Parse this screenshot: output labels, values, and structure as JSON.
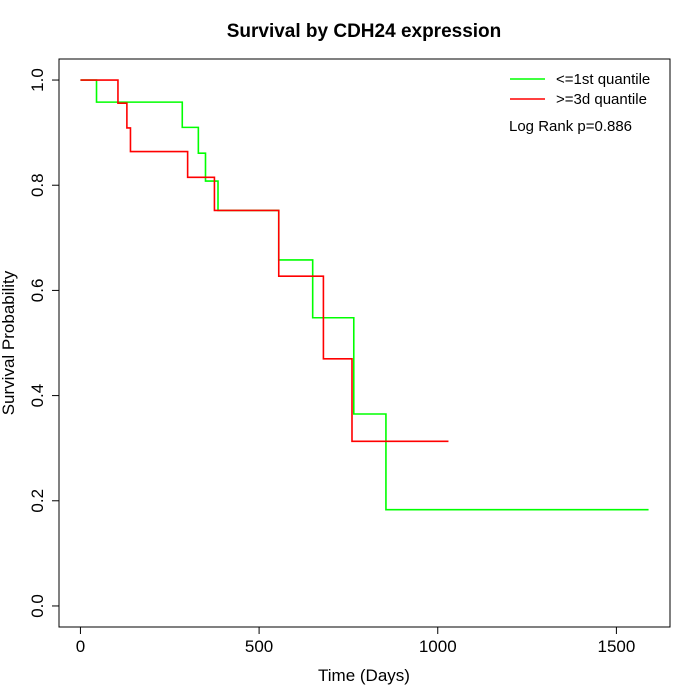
{
  "chart_data": {
    "type": "line",
    "title": "Survival by CDH24 expression",
    "xlabel": "Time (Days)",
    "ylabel": "Survival Probability",
    "xlim": [
      -60,
      1650
    ],
    "ylim": [
      -0.04,
      1.04
    ],
    "xticks": [
      0,
      500,
      1000,
      1500
    ],
    "yticks": [
      0.0,
      0.2,
      0.4,
      0.6,
      0.8,
      1.0
    ],
    "xtick_labels": [
      "0",
      "500",
      "1000",
      "1500"
    ],
    "ytick_labels": [
      "0.0",
      "0.2",
      "0.4",
      "0.6",
      "0.8",
      "1.0"
    ],
    "grid": false,
    "legend_position": "top-right",
    "annotation": "Log Rank p=0.886",
    "series": [
      {
        "name": "<=1st quantile",
        "color": "#00ff00",
        "step_times": [
          0,
          45,
          285,
          330,
          350,
          385,
          555,
          650,
          765,
          855,
          1590
        ],
        "survival": [
          1.0,
          0.958,
          0.91,
          0.861,
          0.808,
          0.752,
          0.658,
          0.548,
          0.365,
          0.183,
          0.183
        ]
      },
      {
        "name": ">=3d quantile",
        "color": "#ff0000",
        "step_times": [
          0,
          105,
          130,
          140,
          300,
          375,
          555,
          680,
          760,
          1030
        ],
        "survival": [
          1.0,
          0.956,
          0.909,
          0.864,
          0.815,
          0.752,
          0.627,
          0.47,
          0.313,
          0.313
        ]
      }
    ]
  }
}
